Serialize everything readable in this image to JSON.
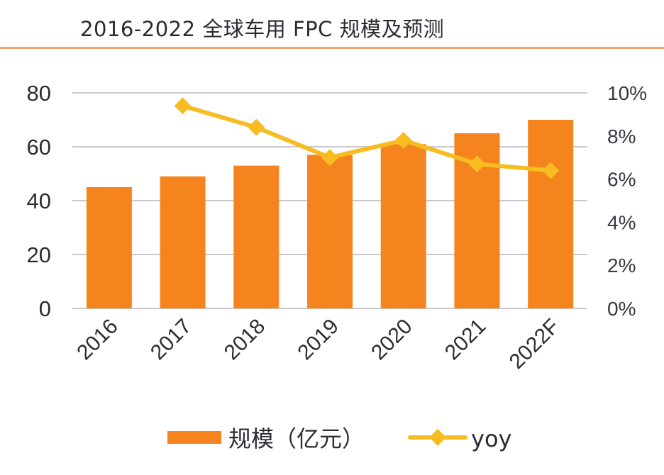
{
  "chart_data": {
    "type": "bar",
    "title": "2016-2022 全球车用 FPC 规模及预测",
    "categories": [
      "2016",
      "2017",
      "2018",
      "2019",
      "2020",
      "2021",
      "2022F"
    ],
    "series": [
      {
        "name": "规模（亿元）",
        "type": "bar",
        "axis": "left",
        "values": [
          45,
          49,
          53,
          57,
          61,
          65,
          70
        ],
        "color": "#f5841f"
      },
      {
        "name": "yoy",
        "type": "line",
        "axis": "right",
        "values": [
          null,
          9.4,
          8.4,
          7.0,
          7.8,
          6.7,
          6.4
        ],
        "color": "#f7bc22"
      }
    ],
    "left_axis": {
      "ylim": [
        0,
        80
      ],
      "ticks": [
        "0",
        "20",
        "40",
        "60",
        "80"
      ],
      "tick_values": [
        0,
        20,
        40,
        60,
        80
      ]
    },
    "right_axis": {
      "ylim": [
        0,
        10
      ],
      "ticks": [
        "0%",
        "2%",
        "4%",
        "6%",
        "8%",
        "10%"
      ],
      "tick_values": [
        0,
        2,
        4,
        6,
        8,
        10
      ]
    },
    "grid": true,
    "legend": "bottom",
    "xlabel": "",
    "ylabel": ""
  },
  "colors": {
    "accent_line": "#e8a869",
    "grid": "#c9c9cc"
  }
}
